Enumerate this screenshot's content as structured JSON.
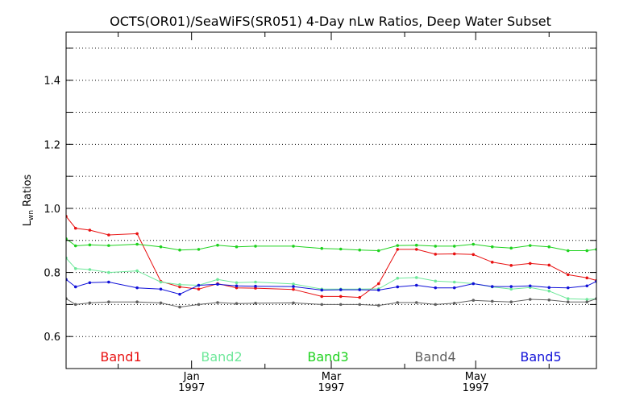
{
  "chart_data": {
    "type": "line",
    "title": "OCTS(OR01)/SeaWiFS(SR051) 4-Day nLw Ratios, Deep Water Subset",
    "ylabel_main": "L",
    "ylabel_sub": "wn",
    "ylabel_rest": " Ratios",
    "xlabel": "",
    "ylim": [
      0.5,
      1.55
    ],
    "xlim": [
      "1996-11-09",
      "1997-06-21"
    ],
    "yticks": [
      "0.6",
      "0.8",
      "1.0",
      "1.2",
      "1.4"
    ],
    "xticks": [
      {
        "date": "1997-01-01",
        "month": "Jan",
        "year": "1997"
      },
      {
        "date": "1997-03-01",
        "month": "Mar",
        "year": "1997"
      },
      {
        "date": "1997-05-01",
        "month": "May",
        "year": "1997"
      }
    ],
    "grid": true,
    "legend_position": "bottom",
    "x": [
      "1996-11-09",
      "1996-11-13",
      "1996-11-19",
      "1996-11-27",
      "1996-12-09",
      "1996-12-19",
      "1996-12-27",
      "1997-01-04",
      "1997-01-12",
      "1997-01-20",
      "1997-01-28",
      "1997-02-13",
      "1997-02-25",
      "1997-03-05",
      "1997-03-13",
      "1997-03-21",
      "1997-03-29",
      "1997-04-06",
      "1997-04-14",
      "1997-04-22",
      "1997-04-30",
      "1997-05-08",
      "1997-05-16",
      "1997-05-24",
      "1997-06-01",
      "1997-06-09",
      "1997-06-17",
      "1997-06-21"
    ],
    "series": [
      {
        "name": "Band1",
        "color": "#e81010",
        "values": [
          0.975,
          0.938,
          0.932,
          0.917,
          0.921,
          0.772,
          0.755,
          0.748,
          0.765,
          0.752,
          0.751,
          0.747,
          0.725,
          0.725,
          0.722,
          0.765,
          0.872,
          0.872,
          0.857,
          0.858,
          0.856,
          0.832,
          0.822,
          0.828,
          0.823,
          0.793,
          0.783,
          0.775
        ]
      },
      {
        "name": "Band2",
        "color": "#6ee89a",
        "values": [
          0.845,
          0.812,
          0.809,
          0.8,
          0.805,
          0.77,
          0.762,
          0.76,
          0.778,
          0.768,
          0.77,
          0.764,
          0.748,
          0.748,
          0.748,
          0.749,
          0.782,
          0.784,
          0.773,
          0.77,
          0.765,
          0.755,
          0.748,
          0.753,
          0.742,
          0.718,
          0.716,
          0.718
        ]
      },
      {
        "name": "Band3",
        "color": "#1ed21e",
        "values": [
          0.905,
          0.883,
          0.886,
          0.884,
          0.888,
          0.88,
          0.87,
          0.872,
          0.885,
          0.88,
          0.882,
          0.882,
          0.875,
          0.873,
          0.87,
          0.868,
          0.884,
          0.885,
          0.882,
          0.882,
          0.888,
          0.88,
          0.876,
          0.884,
          0.88,
          0.868,
          0.868,
          0.872
        ]
      },
      {
        "name": "Band4",
        "color": "#606060",
        "values": [
          0.718,
          0.7,
          0.705,
          0.708,
          0.708,
          0.705,
          0.692,
          0.7,
          0.706,
          0.703,
          0.704,
          0.705,
          0.7,
          0.7,
          0.7,
          0.697,
          0.706,
          0.706,
          0.7,
          0.704,
          0.713,
          0.71,
          0.708,
          0.716,
          0.714,
          0.708,
          0.708,
          0.718
        ]
      },
      {
        "name": "Band5",
        "color": "#1010d8",
        "values": [
          0.778,
          0.755,
          0.768,
          0.77,
          0.752,
          0.748,
          0.732,
          0.76,
          0.763,
          0.758,
          0.757,
          0.756,
          0.745,
          0.746,
          0.746,
          0.745,
          0.755,
          0.76,
          0.752,
          0.752,
          0.765,
          0.756,
          0.756,
          0.758,
          0.753,
          0.752,
          0.758,
          0.772
        ]
      }
    ]
  }
}
